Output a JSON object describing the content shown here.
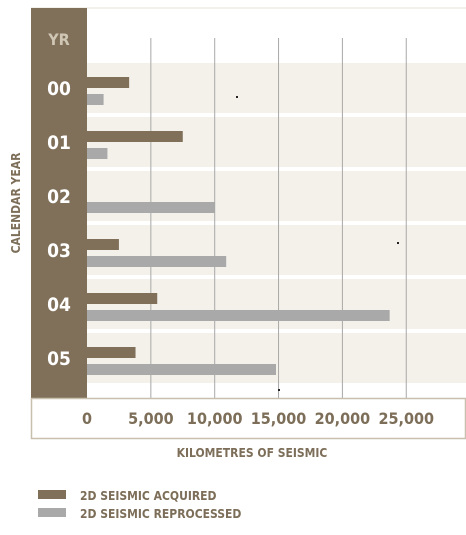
{
  "chart_data": {
    "type": "bar",
    "orientation": "horizontal",
    "title": "",
    "xlabel": "KILOMETRES OF SEISMIC",
    "ylabel": "CALENDAR YEAR",
    "y_header": "YR",
    "categories": [
      "00",
      "01",
      "02",
      "03",
      "04",
      "05"
    ],
    "x_ticks": [
      0,
      5000,
      10000,
      15000,
      20000,
      25000
    ],
    "x_tick_labels": [
      "0",
      "5,000",
      "10,000",
      "15,000",
      "20,000",
      "25,000"
    ],
    "xlim": [
      0,
      29000
    ],
    "grid": true,
    "legend_position": "bottom-left",
    "series": [
      {
        "name": "2D SEISMIC ACQUIRED",
        "color": "#80705a",
        "values": [
          3300,
          7500,
          0,
          2500,
          5500,
          3800
        ]
      },
      {
        "name": "2D SEISMIC REPROCESSED",
        "color": "#a9a9a9",
        "values": [
          1300,
          1600,
          10000,
          10900,
          23700,
          14800
        ]
      }
    ]
  },
  "colors": {
    "band": "#f4f1ea",
    "axis_column": "#80705a",
    "frame": "#c8bfae",
    "grid": "#a8a8a8",
    "text": "#7c6e58"
  }
}
